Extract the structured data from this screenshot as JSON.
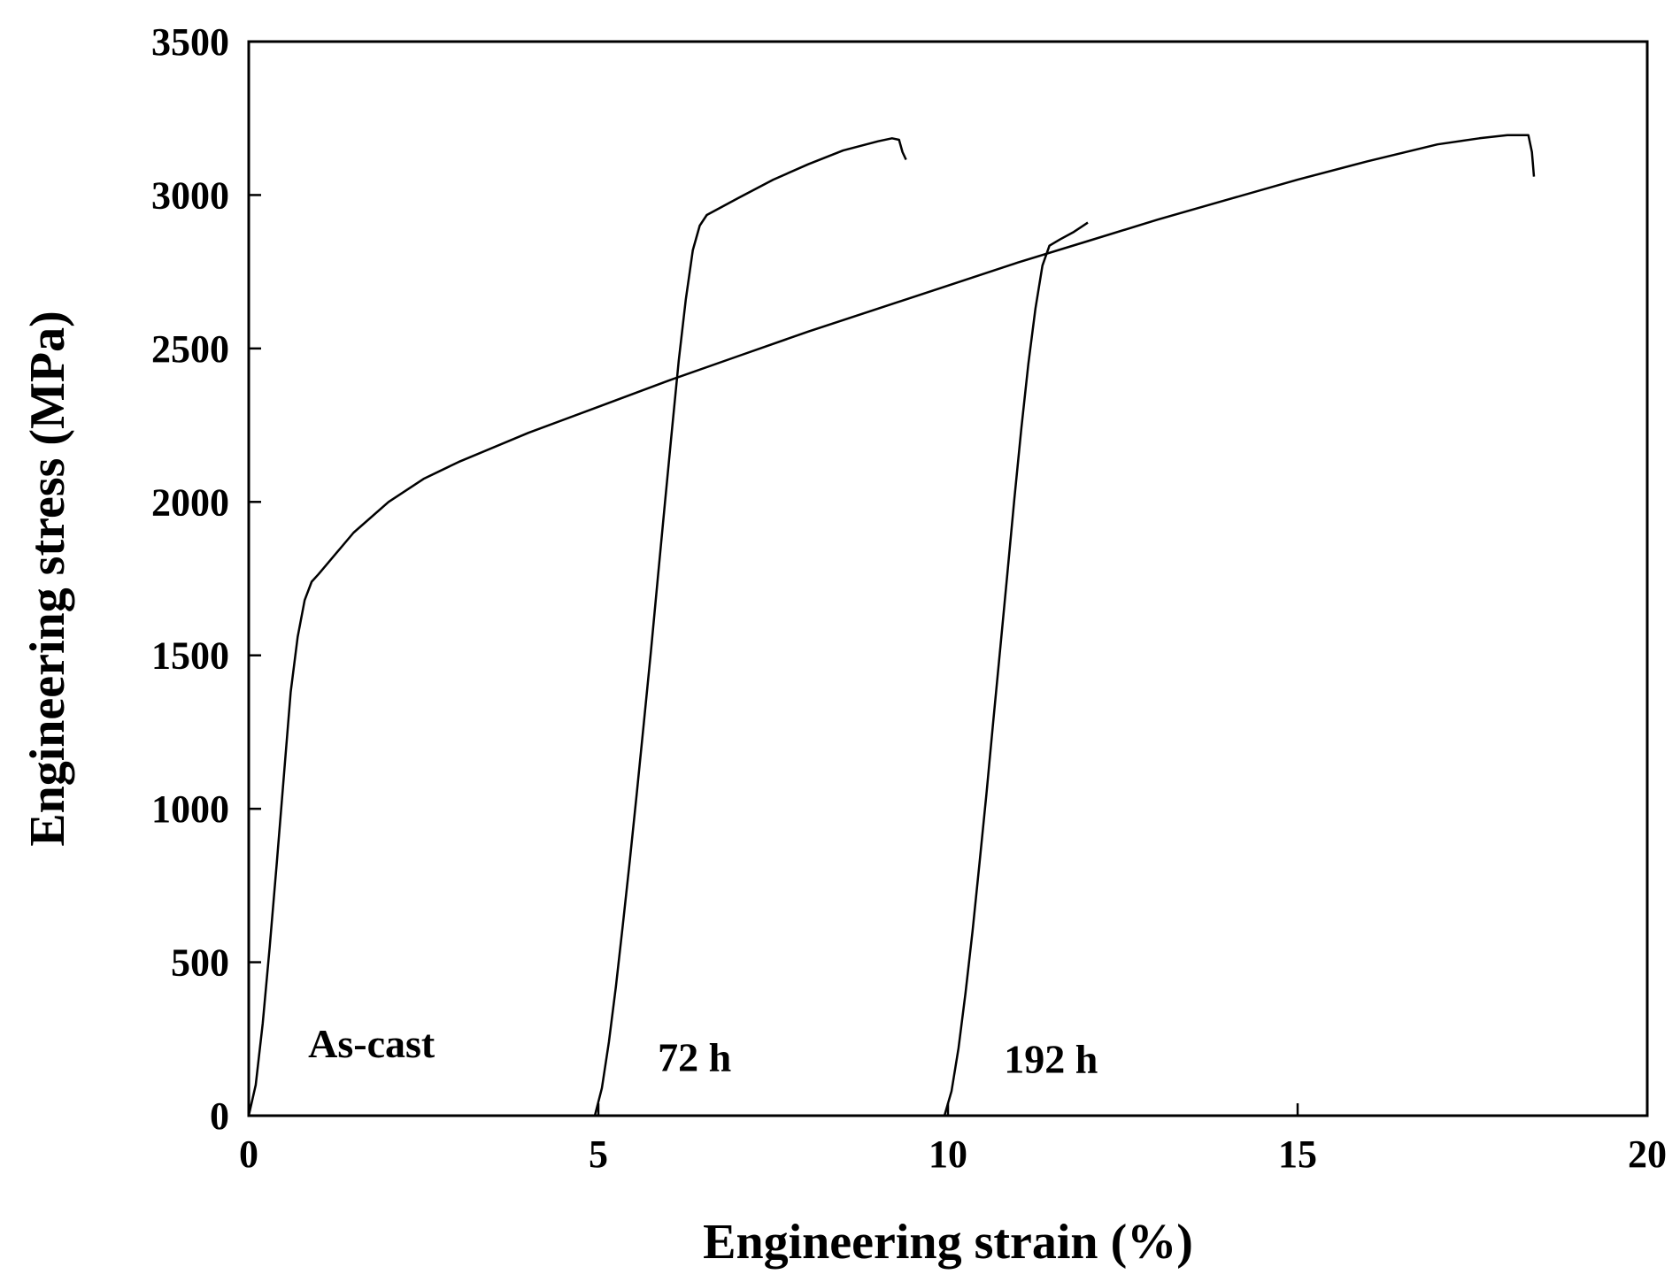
{
  "chart_data": {
    "type": "line",
    "xlabel": "Engineering strain (%)",
    "ylabel": "Engineering stress (MPa)",
    "xlim": [
      0,
      20
    ],
    "ylim": [
      0,
      3500
    ],
    "xticks": [
      "0",
      "5",
      "10",
      "15",
      "20"
    ],
    "yticks": [
      "0",
      "500",
      "1000",
      "1500",
      "2000",
      "2500",
      "3000",
      "3500"
    ],
    "grid": false,
    "legend": "none",
    "line_color": "#000000",
    "series": [
      {
        "label": "As-cast",
        "label_at": [
          0.85,
          190
        ],
        "x": [
          0,
          0.1,
          0.2,
          0.3,
          0.4,
          0.5,
          0.6,
          0.7,
          0.8,
          0.9,
          1.0,
          1.5,
          2.0,
          2.5,
          3.0,
          4.0,
          5.0,
          6.0,
          7.0,
          8.0,
          9.0,
          10.0,
          11.0,
          12.0,
          13.0,
          14.0,
          15.0,
          16.0,
          17.0,
          17.6,
          18.0,
          18.3,
          18.35,
          18.38
        ],
        "y": [
          0,
          100,
          300,
          550,
          820,
          1100,
          1380,
          1560,
          1680,
          1740,
          1765,
          1900,
          2000,
          2075,
          2130,
          2225,
          2310,
          2395,
          2475,
          2555,
          2630,
          2705,
          2780,
          2850,
          2920,
          2985,
          3050,
          3110,
          3165,
          3185,
          3195,
          3195,
          3140,
          3060
        ]
      },
      {
        "label": "72 h",
        "label_at": [
          5.85,
          145
        ],
        "x": [
          4.95,
          5.05,
          5.15,
          5.25,
          5.35,
          5.45,
          5.55,
          5.65,
          5.75,
          5.85,
          5.95,
          6.05,
          6.15,
          6.25,
          6.35,
          6.45,
          6.55,
          7.0,
          7.5,
          8.0,
          8.5,
          9.0,
          9.2,
          9.3,
          9.35,
          9.4
        ],
        "y": [
          0,
          90,
          240,
          420,
          620,
          830,
          1050,
          1280,
          1510,
          1750,
          1990,
          2230,
          2460,
          2660,
          2820,
          2900,
          2935,
          2990,
          3050,
          3100,
          3145,
          3175,
          3185,
          3180,
          3140,
          3115
        ]
      },
      {
        "label": "192 h",
        "label_at": [
          10.8,
          140
        ],
        "x": [
          9.95,
          10.05,
          10.15,
          10.25,
          10.35,
          10.45,
          10.55,
          10.65,
          10.75,
          10.85,
          10.95,
          11.05,
          11.15,
          11.25,
          11.35,
          11.45,
          11.6,
          11.8,
          12.0
        ],
        "y": [
          0,
          80,
          220,
          400,
          600,
          820,
          1050,
          1290,
          1530,
          1770,
          2010,
          2240,
          2450,
          2630,
          2770,
          2835,
          2855,
          2880,
          2910
        ]
      }
    ]
  }
}
